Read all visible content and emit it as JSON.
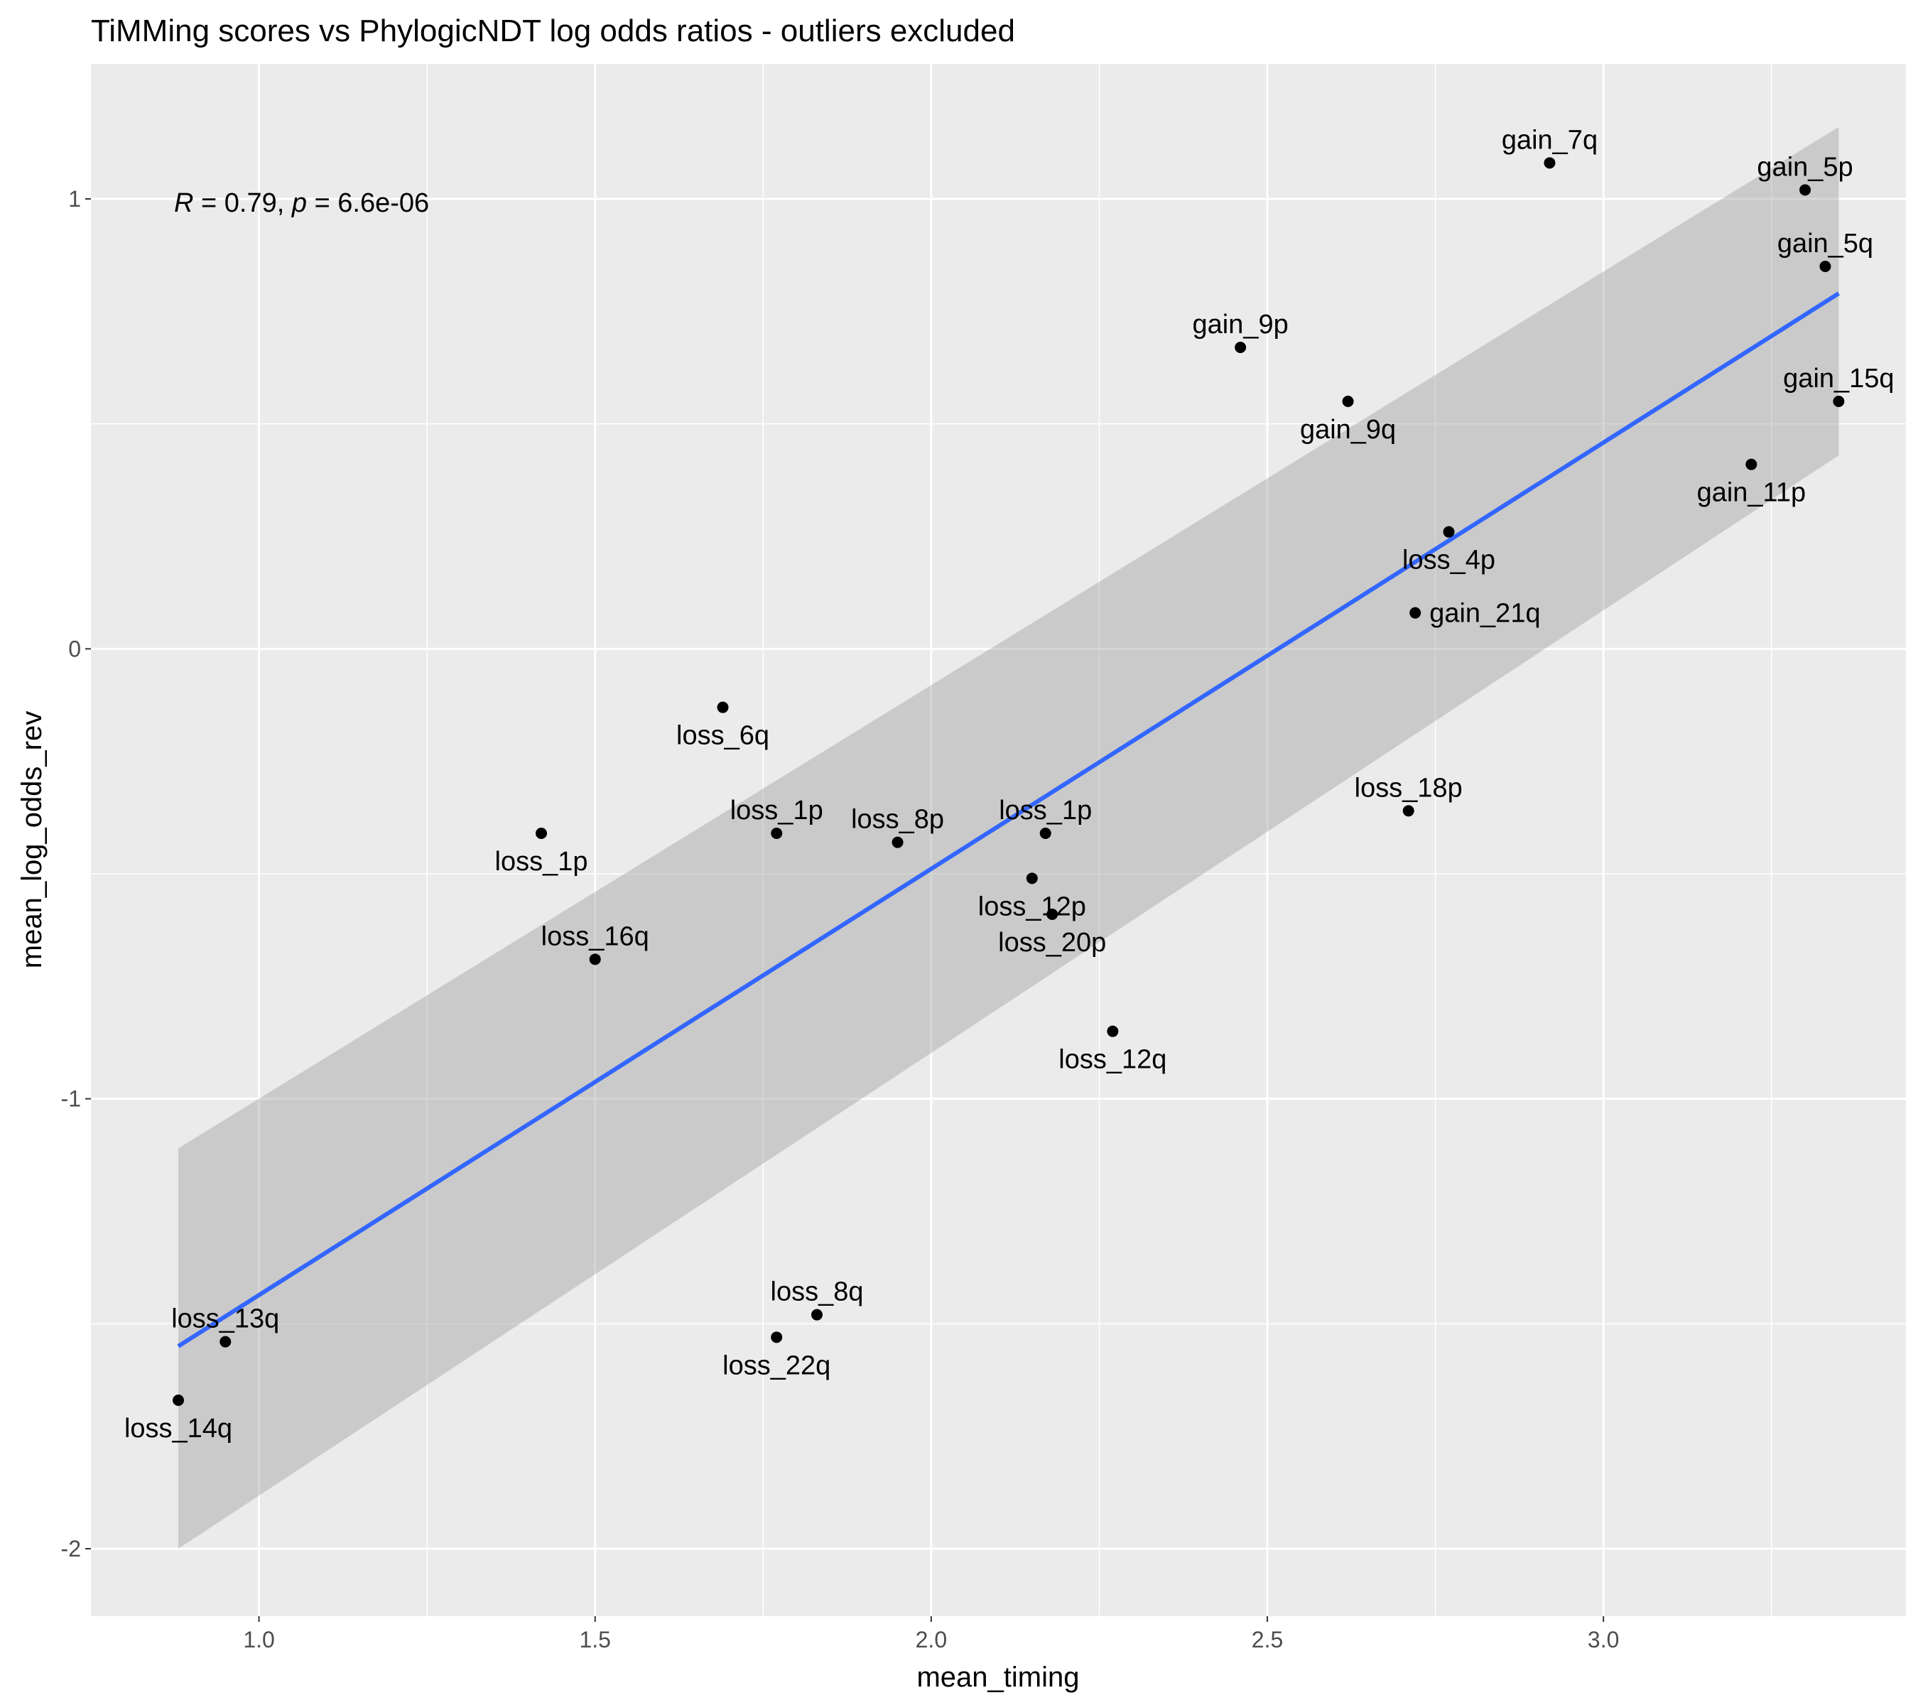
{
  "chart_data": {
    "type": "scatter",
    "title": "TiMMing scores vs PhylogicNDT log odds ratios - outliers excluded",
    "xlabel": "mean_timing",
    "ylabel": "mean_log_odds_rev",
    "xlim": [
      0.75,
      3.45
    ],
    "ylim": [
      -2.15,
      1.3
    ],
    "x_ticks": [
      1.0,
      1.5,
      2.0,
      2.5,
      3.0
    ],
    "x_tick_labels": [
      "1.0",
      "1.5",
      "2.0",
      "2.5",
      "3.0"
    ],
    "y_ticks": [
      -2,
      -1,
      0,
      1
    ],
    "y_tick_labels": [
      "-2",
      "-1",
      "0",
      "1"
    ],
    "grid": true,
    "background": "#ebebeb",
    "annotation": {
      "r_symbol": "R",
      "r_text": " = 0.79, ",
      "p_symbol": "p",
      "p_text": " = 6.6e-06"
    },
    "regression": {
      "x": [
        0.88,
        3.35
      ],
      "y": [
        -1.55,
        0.79
      ],
      "ci_lower": [
        -2.0,
        0.43
      ],
      "ci_upper": [
        -1.11,
        1.16
      ],
      "color": "#3366ff"
    },
    "points": [
      {
        "label": "gain_7q",
        "x": 2.92,
        "y": 1.08,
        "label_pos": "above"
      },
      {
        "label": "gain_5p",
        "x": 3.3,
        "y": 1.02,
        "label_pos": "above"
      },
      {
        "label": "gain_5q",
        "x": 3.33,
        "y": 0.85,
        "label_pos": "above"
      },
      {
        "label": "gain_9p",
        "x": 2.46,
        "y": 0.67,
        "label_pos": "above"
      },
      {
        "label": "gain_9q",
        "x": 2.62,
        "y": 0.55,
        "label_pos": "below"
      },
      {
        "label": "gain_15q",
        "x": 3.35,
        "y": 0.55,
        "label_pos": "above"
      },
      {
        "label": "gain_11p",
        "x": 3.22,
        "y": 0.41,
        "label_pos": "below"
      },
      {
        "label": "loss_4p",
        "x": 2.77,
        "y": 0.26,
        "label_pos": "below"
      },
      {
        "label": "gain_21q",
        "x": 2.72,
        "y": 0.08,
        "label_pos": "right"
      },
      {
        "label": "loss_6q",
        "x": 1.69,
        "y": -0.13,
        "label_pos": "below"
      },
      {
        "label": "loss_1p",
        "x": 1.42,
        "y": -0.41,
        "label_pos": "below"
      },
      {
        "label": "loss_1p",
        "x": 1.77,
        "y": -0.41,
        "label_pos": "above"
      },
      {
        "label": "loss_8p",
        "x": 1.95,
        "y": -0.43,
        "label_pos": "above"
      },
      {
        "label": "loss_1p",
        "x": 2.17,
        "y": -0.41,
        "label_pos": "above"
      },
      {
        "label": "loss_18p",
        "x": 2.71,
        "y": -0.36,
        "label_pos": "above"
      },
      {
        "label": "loss_12p",
        "x": 2.15,
        "y": -0.51,
        "label_pos": "below"
      },
      {
        "label": "loss_20p",
        "x": 2.18,
        "y": -0.59,
        "label_pos": "below"
      },
      {
        "label": "loss_16q",
        "x": 1.5,
        "y": -0.69,
        "label_pos": "above"
      },
      {
        "label": "loss_12q",
        "x": 2.27,
        "y": -0.85,
        "label_pos": "below"
      },
      {
        "label": "loss_8q",
        "x": 1.83,
        "y": -1.48,
        "label_pos": "above"
      },
      {
        "label": "loss_22q",
        "x": 1.77,
        "y": -1.53,
        "label_pos": "below"
      },
      {
        "label": "loss_13q",
        "x": 0.95,
        "y": -1.54,
        "label_pos": "above"
      },
      {
        "label": "loss_14q",
        "x": 0.88,
        "y": -1.67,
        "label_pos": "below"
      }
    ]
  }
}
